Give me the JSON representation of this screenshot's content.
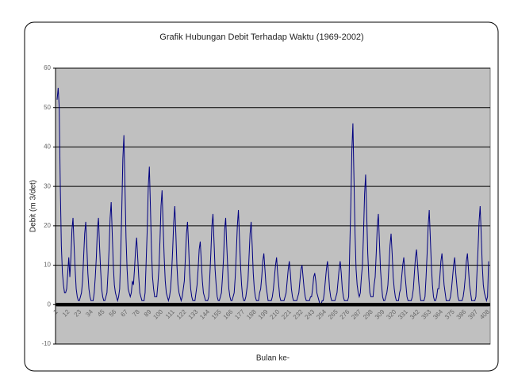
{
  "chart_data": {
    "type": "line",
    "title": "Grafik Hubungan Debit Terhadap Waktu (1969-2002)",
    "x_label": "Bulan ke-",
    "y_label": "Debit (m 3/det)",
    "ylim": [
      -10,
      60
    ],
    "yticks": [
      -10,
      0,
      10,
      20,
      30,
      40,
      50,
      60
    ],
    "grid": true,
    "background": "#c0c0c0",
    "categories": [
      "1",
      null,
      null,
      null,
      null,
      null,
      null,
      null,
      null,
      null,
      null,
      "12",
      null,
      null,
      null,
      null,
      null,
      null,
      null,
      null,
      null,
      null,
      "23",
      null,
      null,
      null,
      null,
      null,
      null,
      null,
      null,
      null,
      null,
      "34",
      null,
      null,
      null,
      null,
      null,
      null,
      null,
      null,
      null,
      null,
      "45",
      null,
      null,
      null,
      null,
      null,
      null,
      null,
      null,
      null,
      null,
      "56",
      null,
      null,
      null,
      null,
      null,
      null,
      null,
      null,
      null,
      null,
      "67",
      null,
      null,
      null,
      null,
      null,
      null,
      null,
      null,
      null,
      null,
      "78",
      null,
      null,
      null,
      null,
      null,
      null,
      null,
      null,
      null,
      null,
      "89",
      null,
      null,
      null,
      null,
      null,
      null,
      null,
      null,
      null,
      null,
      "100",
      null,
      null,
      null,
      null,
      null,
      null,
      null,
      null,
      null,
      null,
      "111",
      null,
      null,
      null,
      null,
      null,
      null,
      null,
      null,
      null,
      null,
      "122",
      null,
      null,
      null,
      null,
      null,
      null,
      null,
      null,
      null,
      null,
      "133",
      null,
      null,
      null,
      null,
      null,
      null,
      null,
      null,
      null,
      null,
      "144",
      null,
      null,
      null,
      null,
      null,
      null,
      null,
      null,
      null,
      null,
      "155",
      null,
      null,
      null,
      null,
      null,
      null,
      null,
      null,
      null,
      null,
      "166",
      null,
      null,
      null,
      null,
      null,
      null,
      null,
      null,
      null,
      null,
      "177",
      null,
      null,
      null,
      null,
      null,
      null,
      null,
      null,
      null,
      null,
      "188",
      null,
      null,
      null,
      null,
      null,
      null,
      null,
      null,
      null,
      null,
      "199",
      null,
      null,
      null,
      null,
      null,
      null,
      null,
      null,
      null,
      null,
      "210",
      null,
      null,
      null,
      null,
      null,
      null,
      null,
      null,
      null,
      null,
      "221",
      null,
      null,
      null,
      null,
      null,
      null,
      null,
      null,
      null,
      null,
      "232",
      null,
      null,
      null,
      null,
      null,
      null,
      null,
      null,
      null,
      null,
      "243",
      null,
      null,
      null,
      null,
      null,
      null,
      null,
      null,
      null,
      null,
      "254",
      null,
      null,
      null,
      null,
      null,
      null,
      null,
      null,
      null,
      null,
      "265",
      null,
      null,
      null,
      null,
      null,
      null,
      null,
      null,
      null,
      null,
      "276",
      null,
      null,
      null,
      null,
      null,
      null,
      null,
      null,
      null,
      null,
      "287",
      null,
      null,
      null,
      null,
      null,
      null,
      null,
      null,
      null,
      null,
      "298",
      null,
      null,
      null,
      null,
      null,
      null,
      null,
      null,
      null,
      null,
      "309",
      null,
      null,
      null,
      null,
      null,
      null,
      null,
      null,
      null,
      null,
      "320",
      null,
      null,
      null,
      null,
      null,
      null,
      null,
      null,
      null,
      null,
      "331",
      null,
      null,
      null,
      null,
      null,
      null,
      null,
      null,
      null,
      null,
      "342",
      null,
      null,
      null,
      null,
      null,
      null,
      null,
      null,
      null,
      null,
      "353",
      null,
      null,
      null,
      null,
      null,
      null,
      null,
      null,
      null,
      null,
      "364",
      null,
      null,
      null,
      null,
      null,
      null,
      null,
      null,
      null,
      null,
      "375",
      null,
      null,
      null,
      null,
      null,
      null,
      null,
      null,
      null,
      null,
      "386",
      null,
      null,
      null,
      null,
      null,
      null,
      null,
      null,
      null,
      null,
      "397",
      null,
      null,
      null,
      null,
      null,
      null,
      null,
      null,
      null,
      null,
      "408"
    ],
    "series": [
      {
        "color": "#000080",
        "values": [
          52,
          55,
          50,
          30,
          15,
          8,
          5,
          3,
          3,
          4,
          8,
          12,
          7,
          12,
          19,
          22,
          15,
          9,
          4,
          2,
          1,
          1,
          2,
          3,
          6,
          12,
          18,
          21,
          15,
          8,
          4,
          2,
          1,
          1,
          1,
          3,
          7,
          12,
          19,
          22,
          15,
          9,
          4,
          2,
          1,
          1,
          2,
          3,
          8,
          14,
          22,
          26,
          18,
          10,
          5,
          3,
          2,
          1,
          2,
          4,
          13,
          24,
          37,
          43,
          30,
          17,
          9,
          4,
          3,
          2,
          3,
          6,
          5,
          9,
          14,
          17,
          12,
          7,
          3,
          2,
          1,
          1,
          1,
          3,
          11,
          19,
          30,
          35,
          25,
          14,
          7,
          4,
          2,
          2,
          2,
          5,
          9,
          16,
          25,
          29,
          20,
          12,
          6,
          3,
          2,
          1,
          2,
          4,
          8,
          14,
          21,
          25,
          18,
          10,
          5,
          3,
          2,
          1,
          2,
          4,
          6,
          12,
          18,
          21,
          15,
          8,
          4,
          2,
          1,
          1,
          1,
          3,
          5,
          9,
          14,
          16,
          11,
          6,
          3,
          2,
          1,
          1,
          1,
          2,
          7,
          13,
          20,
          23,
          16,
          9,
          5,
          2,
          1,
          1,
          2,
          3,
          7,
          12,
          19,
          22,
          15,
          9,
          4,
          2,
          1,
          1,
          2,
          3,
          7,
          13,
          20,
          24,
          17,
          10,
          5,
          2,
          1,
          1,
          2,
          4,
          6,
          12,
          18,
          21,
          15,
          8,
          4,
          2,
          1,
          1,
          1,
          3,
          4,
          7,
          11,
          13,
          9,
          5,
          3,
          1,
          1,
          1,
          1,
          2,
          4,
          7,
          10,
          12,
          8,
          5,
          2,
          1,
          1,
          1,
          1,
          2,
          3,
          6,
          9,
          11,
          8,
          4,
          2,
          1,
          1,
          1,
          1,
          2,
          3,
          6,
          9,
          10,
          7,
          4,
          2,
          1,
          1,
          1,
          1,
          2,
          2,
          4,
          7,
          8,
          6,
          3,
          2,
          1,
          0,
          0,
          1,
          1,
          3,
          6,
          9,
          11,
          8,
          4,
          2,
          1,
          1,
          1,
          1,
          2,
          3,
          6,
          9,
          11,
          8,
          4,
          2,
          1,
          1,
          1,
          1,
          2,
          14,
          25,
          39,
          46,
          32,
          18,
          9,
          5,
          3,
          2,
          3,
          7,
          10,
          18,
          28,
          33,
          23,
          13,
          7,
          3,
          2,
          2,
          2,
          5,
          7,
          13,
          20,
          23,
          16,
          9,
          5,
          2,
          1,
          1,
          2,
          3,
          5,
          10,
          15,
          18,
          13,
          7,
          4,
          2,
          1,
          1,
          1,
          3,
          4,
          7,
          10,
          12,
          8,
          5,
          2,
          1,
          1,
          1,
          1,
          2,
          4,
          8,
          12,
          14,
          10,
          6,
          3,
          1,
          1,
          1,
          1,
          2,
          7,
          13,
          20,
          24,
          17,
          10,
          5,
          2,
          1,
          1,
          2,
          4,
          4,
          7,
          11,
          13,
          9,
          5,
          3,
          1,
          1,
          1,
          1,
          2,
          4,
          7,
          10,
          12,
          8,
          5,
          2,
          1,
          1,
          1,
          1,
          2,
          4,
          7,
          11,
          13,
          9,
          5,
          3,
          1,
          1,
          1,
          1,
          2,
          8,
          14,
          21,
          25,
          18,
          10,
          5,
          3,
          2,
          1,
          2,
          11
        ]
      },
      {
        "color": "#000000",
        "marker": "square",
        "values": [
          0,
          0,
          0,
          0,
          0,
          0,
          0,
          0,
          0,
          0,
          0,
          0,
          0,
          0,
          0,
          0,
          0,
          0,
          0,
          0,
          0,
          0,
          0,
          0,
          0,
          0,
          0,
          0,
          0,
          0,
          0,
          0,
          0,
          0,
          0,
          0,
          0,
          0,
          0,
          0,
          0,
          0,
          0,
          0,
          0,
          0,
          0,
          0,
          0,
          0,
          0,
          0,
          0,
          0,
          0,
          0,
          0,
          0,
          0,
          0,
          0,
          0,
          0,
          0,
          0,
          0,
          0,
          0,
          0,
          0,
          0,
          0,
          0,
          0,
          0,
          0,
          0,
          0,
          0,
          0,
          0,
          0,
          0,
          0,
          0,
          0,
          0,
          0,
          0,
          0,
          0,
          0,
          0,
          0,
          0,
          0,
          0,
          0,
          0,
          0,
          0,
          0,
          0,
          0,
          0,
          0,
          0,
          0,
          0,
          0,
          0,
          0,
          0,
          0,
          0,
          0,
          0,
          0,
          0,
          0,
          0,
          0,
          0,
          0,
          0,
          0,
          0,
          0,
          0,
          0,
          0,
          0,
          0,
          0,
          0,
          0,
          0,
          0,
          0,
          0,
          0,
          0,
          0,
          0,
          0,
          0,
          0,
          0,
          0,
          0,
          0,
          0,
          0,
          0,
          0,
          0,
          0,
          0,
          0,
          0,
          0,
          0,
          0,
          0,
          0,
          0,
          0,
          0,
          0,
          0,
          0,
          0,
          0,
          0,
          0,
          0,
          0,
          0,
          0,
          0,
          0,
          0,
          0,
          0,
          0,
          0,
          0,
          0,
          0,
          0,
          0,
          0,
          0,
          0,
          0,
          0,
          0,
          0,
          0,
          0,
          0,
          0,
          0,
          0,
          0,
          0,
          0,
          0,
          0,
          0,
          0,
          0,
          0,
          0,
          0,
          0,
          0,
          0,
          0,
          0,
          0,
          0,
          0,
          0,
          0,
          0,
          0,
          0,
          0,
          0,
          0,
          0,
          0,
          0,
          0,
          0,
          0,
          0,
          0,
          0,
          0,
          0,
          0,
          0,
          0,
          0,
          0,
          0,
          0,
          0,
          0,
          0,
          0,
          0,
          0,
          0,
          0,
          0,
          0,
          0,
          0,
          0,
          0,
          0,
          0,
          0,
          0,
          0,
          0,
          0,
          0,
          0,
          0,
          0,
          0,
          0,
          0,
          0,
          0,
          0,
          0,
          0,
          0,
          0,
          0,
          0,
          0,
          0,
          0,
          0,
          0,
          0,
          0,
          0,
          0,
          0,
          0,
          0,
          0,
          0,
          0,
          0,
          0,
          0,
          0,
          0,
          0,
          0,
          0,
          0,
          0,
          0,
          0,
          0,
          0,
          0,
          0,
          0,
          0,
          0,
          0,
          0,
          0,
          0,
          0,
          0,
          0,
          0,
          0,
          0,
          0,
          0,
          0,
          0,
          0,
          0,
          0,
          0,
          0,
          0,
          0,
          0,
          0,
          0,
          0,
          0,
          0,
          0,
          0,
          0,
          0,
          0,
          0,
          0,
          0,
          0,
          0,
          0,
          0,
          0,
          0,
          0,
          0,
          0,
          0,
          0,
          0,
          0,
          0,
          0,
          0,
          0,
          0,
          0,
          0,
          0,
          0,
          0,
          0,
          0,
          0,
          0,
          0,
          0,
          0,
          0,
          0,
          0,
          0,
          0,
          0,
          0,
          0,
          0,
          0,
          0,
          0,
          0,
          0,
          0,
          0,
          0,
          0,
          0,
          0,
          0,
          0,
          0
        ]
      }
    ]
  }
}
